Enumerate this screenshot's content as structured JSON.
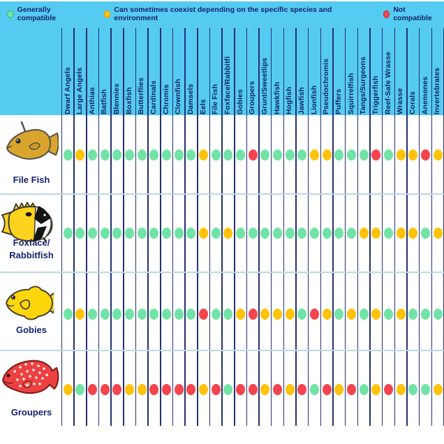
{
  "legend": {
    "items": [
      {
        "key": "G",
        "label": "Generally compatible",
        "color": "#72E3A6",
        "border": "#2FB576"
      },
      {
        "key": "Y",
        "label": "Can sometimes coexist depending on the specific species and environment",
        "color": "#FFC30B",
        "border": "#E09A00"
      },
      {
        "key": "R",
        "label": "Not compatible",
        "color": "#F4444E",
        "border": "#C9232E"
      }
    ]
  },
  "palette": {
    "background": "#FFFFFF",
    "band_cyan": "#55CBF2",
    "navy_text": "#16236B",
    "grid_line": "#25316E",
    "row_separator": "#BCD8E8"
  },
  "chart_data": {
    "type": "heatmap",
    "description": "Saltwater aquarium fish compatibility matrix",
    "legend_position": "top",
    "value_meanings": {
      "G": "Generally compatible",
      "Y": "Can sometimes coexist depending on the specific species and environment",
      "R": "Not compatible"
    },
    "colors": {
      "G": "#72E3A6",
      "Y": "#FFC30B",
      "R": "#F4444E"
    },
    "columns": [
      "Dwarf Angels",
      "Large Angels",
      "Anthias",
      "Batfish",
      "Blennies",
      "Boxfish",
      "Butterflies",
      "Cardinals",
      "Chromis",
      "Clownfish",
      "Damsels",
      "Eels",
      "File Fish",
      "Foxface/Rabbitfi",
      "Gobies",
      "Groupers",
      "Grunt/Sweetlips",
      "Hawkfish",
      "Hogfish",
      "Jawfish",
      "Lionfish",
      "Pseudochromis",
      "Puffers",
      "Squirrelfish",
      "Tangs/Surgeons",
      "Triggerfish",
      "Reef-Safe Wrasse",
      "Wrasse",
      "Corals",
      "Anemones",
      "Invertebrates"
    ],
    "rows": [
      {
        "label": "File Fish",
        "values": [
          "G",
          "Y",
          "G",
          "G",
          "G",
          "G",
          "G",
          "G",
          "G",
          "G",
          "G",
          "Y",
          "G",
          "G",
          "G",
          "R",
          "G",
          "G",
          "G",
          "G",
          "Y",
          "Y",
          "G",
          "G",
          "G",
          "R",
          "G",
          "Y",
          "Y",
          "R",
          "Y"
        ]
      },
      {
        "label": "Foxface/\nRabbitfish",
        "values": [
          "G",
          "G",
          "G",
          "G",
          "G",
          "G",
          "G",
          "G",
          "G",
          "G",
          "G",
          "Y",
          "G",
          "Y",
          "G",
          "G",
          "G",
          "G",
          "G",
          "G",
          "G",
          "G",
          "G",
          "G",
          "Y",
          "Y",
          "G",
          "Y",
          "Y",
          "G",
          "Y"
        ]
      },
      {
        "label": "Gobies",
        "values": [
          "G",
          "Y",
          "G",
          "G",
          "G",
          "G",
          "G",
          "G",
          "G",
          "G",
          "G",
          "R",
          "G",
          "G",
          "Y",
          "R",
          "Y",
          "Y",
          "Y",
          "G",
          "R",
          "Y",
          "G",
          "Y",
          "G",
          "Y",
          "G",
          "Y",
          "G",
          "G",
          "G"
        ]
      },
      {
        "label": "Groupers",
        "values": [
          "Y",
          "G",
          "R",
          "R",
          "R",
          "Y",
          "Y",
          "R",
          "R",
          "R",
          "R",
          "Y",
          "R",
          "G",
          "R",
          "R",
          "Y",
          "R",
          "Y",
          "R",
          "G",
          "R",
          "Y",
          "R",
          "G",
          "Y",
          "R",
          "Y",
          "G",
          "G",
          "Y"
        ]
      }
    ]
  }
}
